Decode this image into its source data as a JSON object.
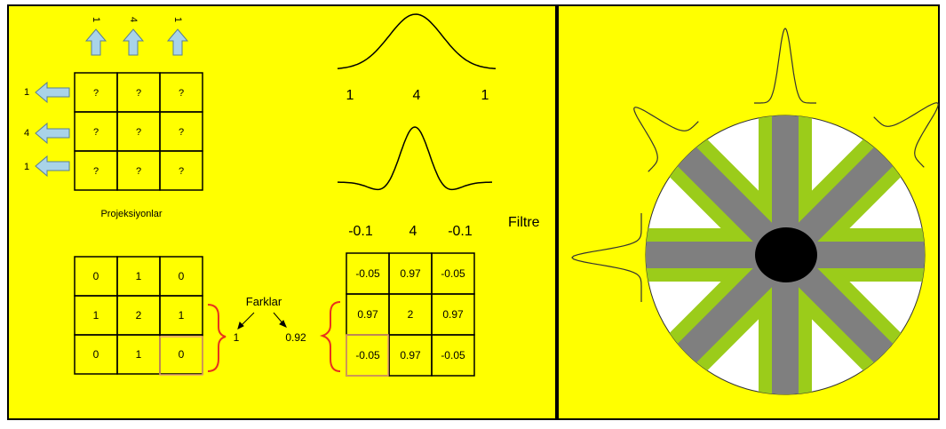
{
  "colors": {
    "background": "#ffff00",
    "arrow_fill": "#a9d3e8",
    "arrow_stroke": "#5a7f92",
    "grid_line": "#000000",
    "brace": "#e8321c",
    "cell_highlight": "#e8a070",
    "disc_white": "#ffffff",
    "strip_green": "#9bcc1a",
    "strip_gray": "#7f7f7f",
    "center_black": "#000000"
  },
  "left_panel": {
    "top_column_sums": [
      "1",
      "4",
      "1"
    ],
    "row_sums": [
      "1",
      "4",
      "1"
    ],
    "unknown_grid": [
      [
        "?",
        "?",
        "?"
      ],
      [
        "?",
        "?",
        "?"
      ],
      [
        "?",
        "?",
        "?"
      ]
    ],
    "projections_label": "Projeksiyonlar",
    "bottom_grid": [
      [
        "0",
        "1",
        "0"
      ],
      [
        "1",
        "2",
        "1"
      ],
      [
        "0",
        "1",
        "0"
      ]
    ],
    "differences": {
      "label": "Farklar",
      "left_value": "1",
      "right_value": "0.92"
    },
    "projection_values": [
      "1",
      "4",
      "1"
    ],
    "filtered_values": [
      "-0.1",
      "4",
      "-0.1"
    ],
    "filter_label": "Filtre",
    "filtered_grid": [
      [
        "-0.05",
        "0.97",
        "-0.05"
      ],
      [
        "0.97",
        "2",
        "0.97"
      ],
      [
        "-0.05",
        "0.97",
        "-0.05"
      ]
    ]
  },
  "right_panel": {
    "icons": [
      "back-projection-disc-icon",
      "projection-profile-icon",
      "center-object-icon"
    ]
  }
}
